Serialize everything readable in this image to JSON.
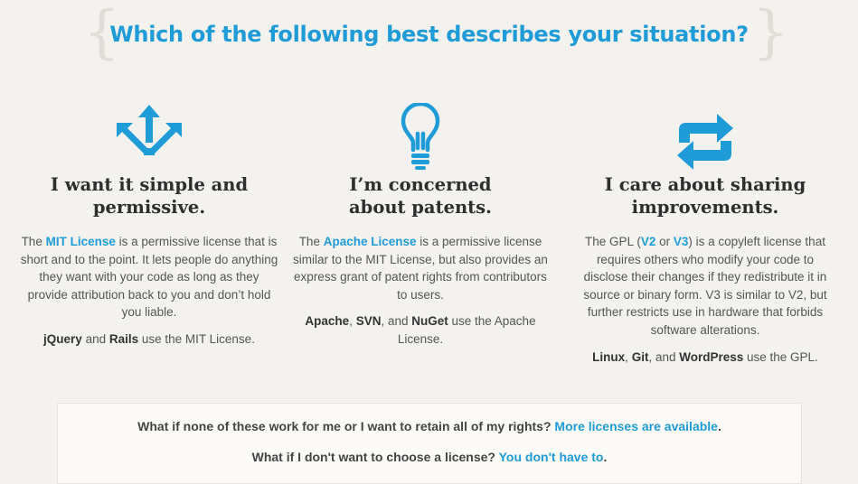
{
  "header": {
    "title": "Which of the following best describes your situation?",
    "brace_left": "{",
    "brace_right": "}"
  },
  "columns": [
    {
      "icon": "arrows-out-icon",
      "title_line1": "I want it simple and",
      "title_line2": "permissive.",
      "desc_pre": "The ",
      "desc_link": "MIT License",
      "desc_post": " is a permissive license that is short and to the point. It lets people do anything they want with your code as long as they provide attribution back to you and don’t hold you liable.",
      "uses": [
        {
          "name": "jQuery",
          "sep": " and "
        },
        {
          "name": "Rails",
          "sep": " use the MIT License."
        }
      ]
    },
    {
      "icon": "lightbulb-icon",
      "title_line1": "I’m concerned",
      "title_line2": "about patents.",
      "desc_pre": "The ",
      "desc_link": "Apache License",
      "desc_post": " is a permissive license similar to the MIT License, but also provides an express grant of patent rights from contributors to users.",
      "uses": [
        {
          "name": "Apache",
          "sep": ", "
        },
        {
          "name": "SVN",
          "sep": ", and "
        },
        {
          "name": "NuGet",
          "sep": " use the Apache License."
        }
      ]
    },
    {
      "icon": "sync-icon",
      "title_line1": "I care about sharing",
      "title_line2": "improvements.",
      "desc_pre": "The GPL (",
      "desc_link": "V2",
      "desc_mid": " or ",
      "desc_link2": "V3",
      "desc_post": ") is a copyleft license that requires others who modify your code to disclose their changes if they redistribute it in source or binary form. V3 is similar to V2, but further restricts use in hardware that forbids software alterations.",
      "uses": [
        {
          "name": "Linux",
          "sep": ", "
        },
        {
          "name": "Git",
          "sep": ", and "
        },
        {
          "name": "WordPress",
          "sep": " use the GPL."
        }
      ]
    }
  ],
  "footer": {
    "q1_text": "What if none of these work for me or I want to retain all of my rights? ",
    "q1_link": "More licenses are available",
    "q1_end": ".",
    "q2_text": "What if I don't want to choose a license? ",
    "q2_link": "You don't have to",
    "q2_end": "."
  },
  "colors": {
    "accent": "#1f9bd7",
    "heading": "#2e2e2e",
    "background": "#f4f2ee"
  }
}
